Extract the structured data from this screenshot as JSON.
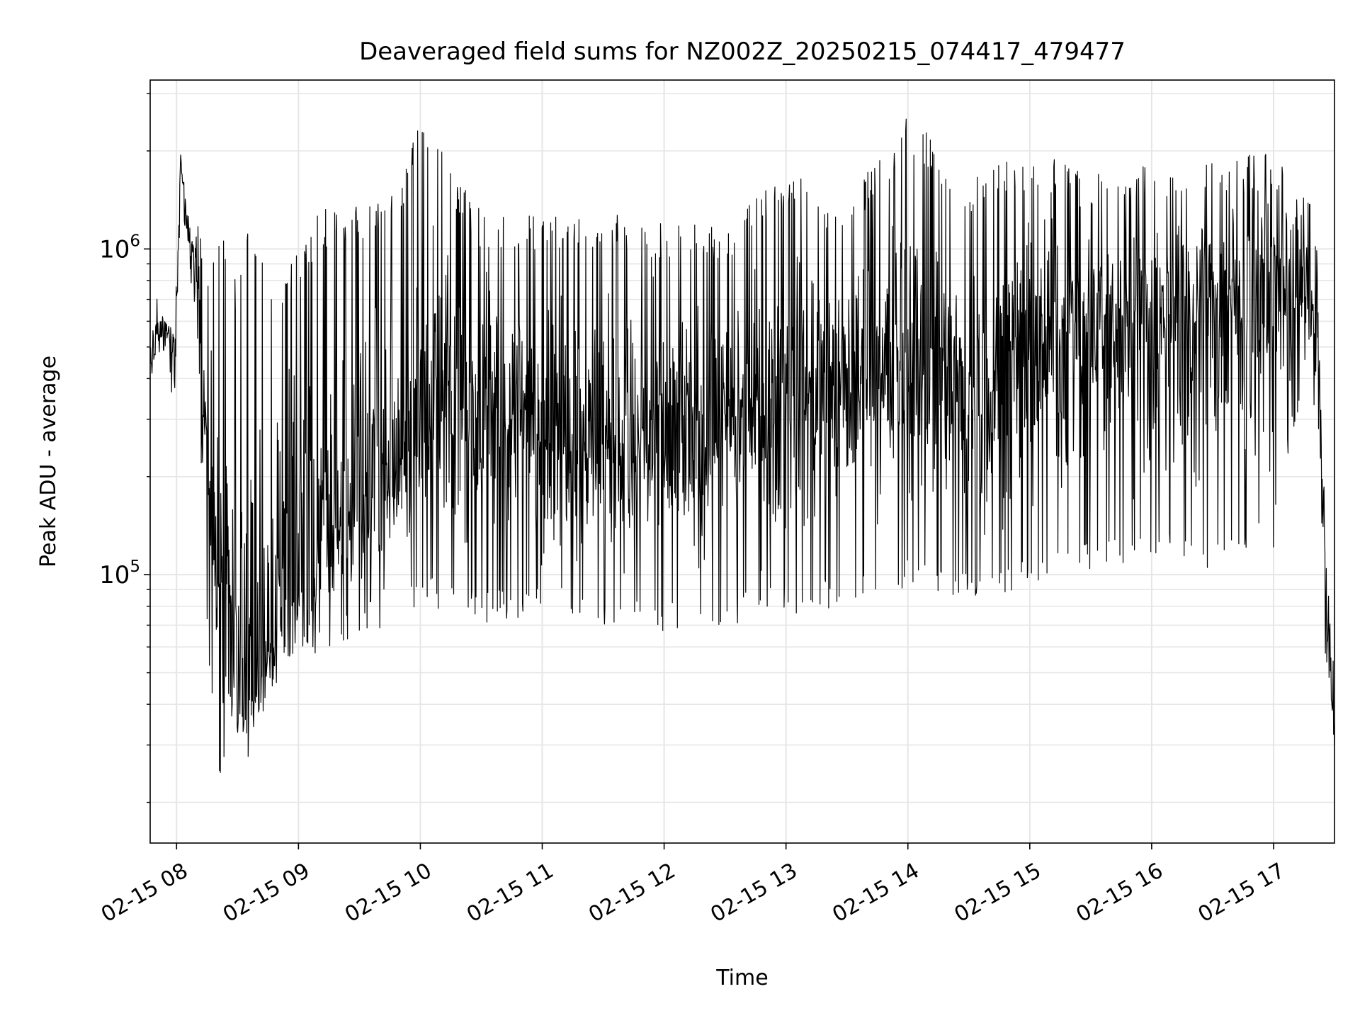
{
  "chart_data": {
    "type": "line",
    "title": "Deaveraged field sums for NZ002Z_20250215_074417_479477",
    "xlabel": "Time",
    "ylabel": "Peak ADU - average",
    "yscale": "log",
    "ylim": [
      15000,
      3300000
    ],
    "xlim": [
      "2025-02-15 07:47",
      "2025-02-15 17:30"
    ],
    "grid": true,
    "legend": "none",
    "x_ticks": [
      "2025-02-15 08:00",
      "2025-02-15 09:00",
      "2025-02-15 10:00",
      "2025-02-15 11:00",
      "2025-02-15 12:00",
      "2025-02-15 13:00",
      "2025-02-15 14:00",
      "2025-02-15 15:00",
      "2025-02-15 16:00",
      "2025-02-15 17:00"
    ],
    "x_tick_labels": [
      "02-15 08",
      "02-15 09",
      "02-15 10",
      "02-15 11",
      "02-15 12",
      "02-15 13",
      "02-15 14",
      "02-15 15",
      "02-15 16",
      "02-15 17"
    ],
    "y_tick_labels": [
      {
        "value": 100000,
        "base": "10",
        "exp": "5"
      },
      {
        "value": 1000000,
        "base": "10",
        "exp": "6"
      }
    ],
    "line_color": "#000000",
    "grid_color": "#e6e6e6",
    "series": [
      {
        "x": [
          "2025-02-15 07:47",
          "2025-02-15 07:51",
          "2025-02-15 07:55",
          "2025-02-15 07:59",
          "2025-02-15 08:02",
          "2025-02-15 08:06",
          "2025-02-15 08:10",
          "2025-02-15 08:14",
          "2025-02-15 08:18",
          "2025-02-15 08:22",
          "2025-02-15 08:26",
          "2025-02-15 08:30",
          "2025-02-15 08:35",
          "2025-02-15 08:40",
          "2025-02-15 08:45",
          "2025-02-15 08:50",
          "2025-02-15 09:00",
          "2025-02-15 09:10",
          "2025-02-15 09:20",
          "2025-02-15 09:30",
          "2025-02-15 09:45",
          "2025-02-15 10:00",
          "2025-02-15 10:30",
          "2025-02-15 11:00",
          "2025-02-15 11:30",
          "2025-02-15 12:00",
          "2025-02-15 12:30",
          "2025-02-15 13:00",
          "2025-02-15 13:30",
          "2025-02-15 14:00",
          "2025-02-15 14:30",
          "2025-02-15 15:00",
          "2025-02-15 15:30",
          "2025-02-15 16:00",
          "2025-02-15 16:30",
          "2025-02-15 17:00",
          "2025-02-15 17:15",
          "2025-02-15 17:22",
          "2025-02-15 17:26",
          "2025-02-15 17:30"
        ],
        "y": [
          450000,
          520000,
          560000,
          500000,
          1900000,
          1100000,
          900000,
          300000,
          120000,
          60000,
          45000,
          40000,
          38000,
          45000,
          60000,
          70000,
          90000,
          110000,
          140000,
          160000,
          200000,
          300000,
          320000,
          300000,
          250000,
          240000,
          260000,
          350000,
          380000,
          450000,
          350000,
          500000,
          550000,
          650000,
          700000,
          750000,
          850000,
          500000,
          80000,
          30000
        ],
        "upper": [
          700000,
          720000,
          650000,
          600000,
          2000000,
          1350000,
          1300000,
          900000,
          1100000,
          1200000,
          950000,
          800000,
          1200000,
          1200000,
          700000,
          800000,
          1000000,
          1300000,
          1400000,
          1400000,
          1400000,
          2500000,
          1300000,
          1300000,
          1300000,
          1200000,
          1200000,
          1800000,
          1400000,
          2600000,
          1700000,
          2000000,
          1800000,
          1800000,
          1900000,
          2000000,
          1800000,
          1200000,
          150000,
          80000
        ],
        "lower": [
          380000,
          420000,
          430000,
          330000,
          1200000,
          800000,
          500000,
          100000,
          30000,
          22000,
          30000,
          28000,
          25000,
          35000,
          40000,
          45000,
          50000,
          55000,
          60000,
          65000,
          70000,
          80000,
          70000,
          75000,
          70000,
          65000,
          70000,
          75000,
          80000,
          90000,
          80000,
          90000,
          100000,
          110000,
          100000,
          120000,
          400000,
          250000,
          45000,
          30000
        ]
      }
    ]
  }
}
